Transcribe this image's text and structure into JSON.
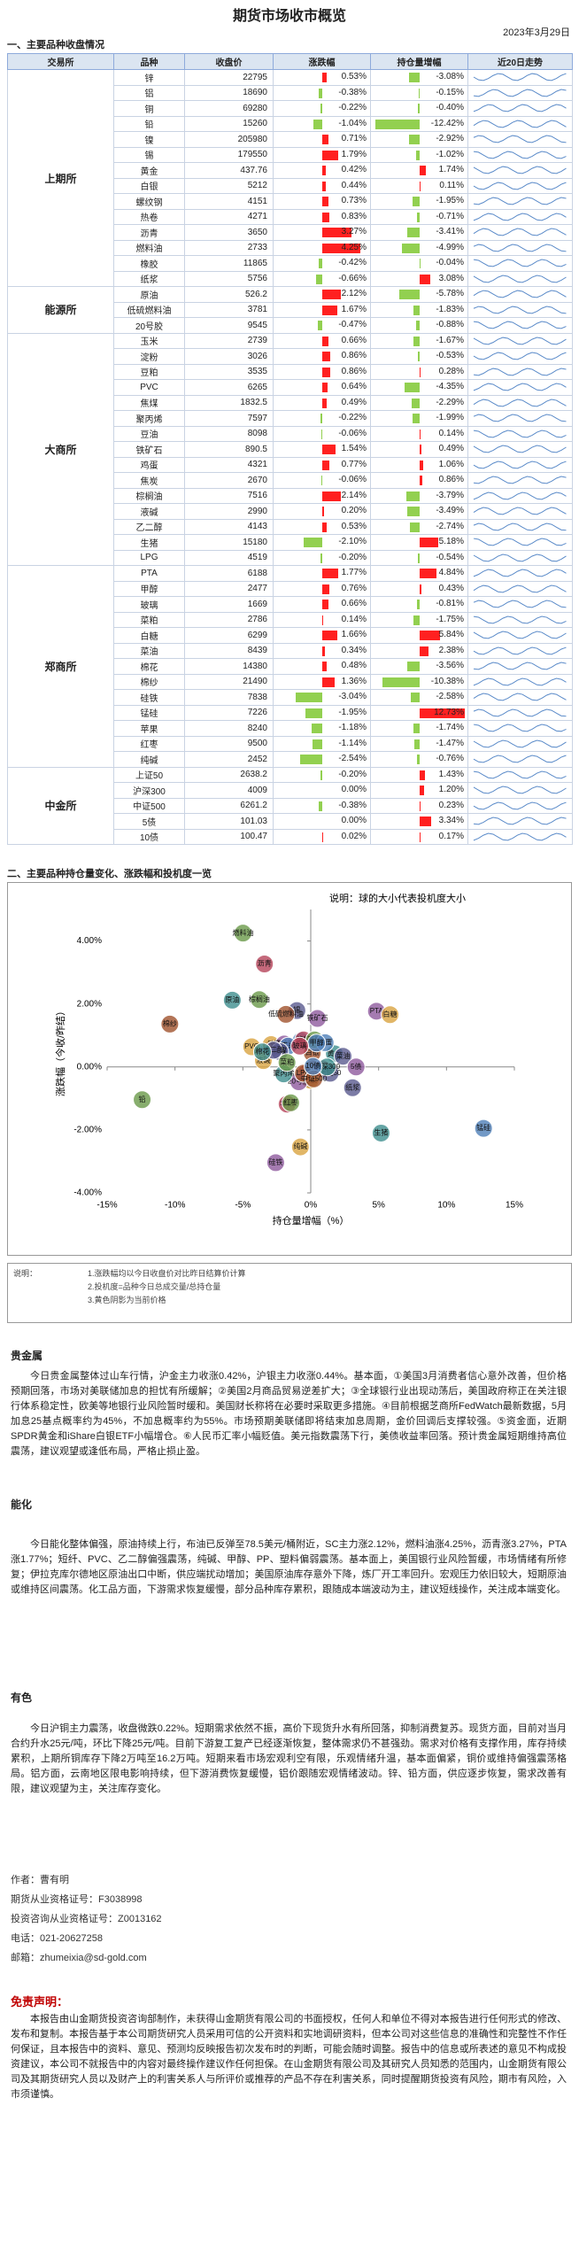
{
  "header": {
    "title": "期货市场收市概览",
    "date": "2023年3月29日"
  },
  "section1": "一、主要品种收盘情况",
  "table": {
    "columns": [
      "交易所",
      "品种",
      "收盘价",
      "涨跌幅",
      "持仓量增幅",
      "近20日走势"
    ],
    "groups": [
      {
        "exchange": "上期所",
        "rows": [
          {
            "variety": "锌",
            "close": 22795,
            "chg": 0.53,
            "chg_label": "0.53%",
            "oi": -3.08,
            "oi_label": "-3.08%"
          },
          {
            "variety": "铝",
            "close": 18690,
            "chg": -0.38,
            "chg_label": "-0.38%",
            "oi": -0.15,
            "oi_label": "-0.15%"
          },
          {
            "variety": "铜",
            "close": 69280,
            "chg": -0.22,
            "chg_label": "-0.22%",
            "oi": -0.4,
            "oi_label": "-0.40%"
          },
          {
            "variety": "铅",
            "close": 15260,
            "chg": -1.04,
            "chg_label": "-1.04%",
            "oi": -12.42,
            "oi_label": "-12.42%"
          },
          {
            "variety": "镍",
            "close": 205980,
            "chg": 0.71,
            "chg_label": "0.71%",
            "oi": -2.92,
            "oi_label": "-2.92%"
          },
          {
            "variety": "锡",
            "close": 179550,
            "chg": 1.79,
            "chg_label": "1.79%",
            "oi": -1.02,
            "oi_label": "-1.02%"
          },
          {
            "variety": "黄金",
            "close": 437.76,
            "chg": 0.42,
            "chg_label": "0.42%",
            "oi": 1.74,
            "oi_label": "1.74%"
          },
          {
            "variety": "白银",
            "close": 5212,
            "chg": 0.44,
            "chg_label": "0.44%",
            "oi": 0.11,
            "oi_label": "0.11%"
          },
          {
            "variety": "螺纹钢",
            "close": 4151,
            "chg": 0.73,
            "chg_label": "0.73%",
            "oi": -1.95,
            "oi_label": "-1.95%"
          },
          {
            "variety": "热卷",
            "close": 4271,
            "chg": 0.83,
            "chg_label": "0.83%",
            "oi": -0.71,
            "oi_label": "-0.71%"
          },
          {
            "variety": "沥青",
            "close": 3650,
            "chg": 3.27,
            "chg_label": "3.27%",
            "oi": -3.41,
            "oi_label": "-3.41%"
          },
          {
            "variety": "燃料油",
            "close": 2733,
            "chg": 4.25,
            "chg_label": "4.25%",
            "oi": -4.99,
            "oi_label": "-4.99%"
          },
          {
            "variety": "橡胶",
            "close": 11865,
            "chg": -0.42,
            "chg_label": "-0.42%",
            "oi": -0.04,
            "oi_label": "-0.04%"
          },
          {
            "variety": "纸浆",
            "close": 5756,
            "chg": -0.66,
            "chg_label": "-0.66%",
            "oi": 3.08,
            "oi_label": "3.08%"
          }
        ]
      },
      {
        "exchange": "能源所",
        "rows": [
          {
            "variety": "原油",
            "close": 526.2,
            "chg": 2.12,
            "chg_label": "2.12%",
            "oi": -5.78,
            "oi_label": "-5.78%"
          },
          {
            "variety": "低硫燃料油",
            "close": 3781,
            "chg": 1.67,
            "chg_label": "1.67%",
            "oi": -1.83,
            "oi_label": "-1.83%"
          },
          {
            "variety": "20号胶",
            "close": 9545,
            "chg": -0.47,
            "chg_label": "-0.47%",
            "oi": -0.88,
            "oi_label": "-0.88%"
          }
        ]
      },
      {
        "exchange": "大商所",
        "rows": [
          {
            "variety": "玉米",
            "close": 2739,
            "chg": 0.66,
            "chg_label": "0.66%",
            "oi": -1.67,
            "oi_label": "-1.67%"
          },
          {
            "variety": "淀粉",
            "close": 3026,
            "chg": 0.86,
            "chg_label": "0.86%",
            "oi": -0.53,
            "oi_label": "-0.53%"
          },
          {
            "variety": "豆粕",
            "close": 3535,
            "chg": 0.86,
            "chg_label": "0.86%",
            "oi": 0.28,
            "oi_label": "0.28%"
          },
          {
            "variety": "PVC",
            "close": 6265,
            "chg": 0.64,
            "chg_label": "0.64%",
            "oi": -4.35,
            "oi_label": "-4.35%"
          },
          {
            "variety": "焦煤",
            "close": 1832.5,
            "chg": 0.49,
            "chg_label": "0.49%",
            "oi": -2.29,
            "oi_label": "-2.29%"
          },
          {
            "variety": "聚丙烯",
            "close": 7597,
            "chg": -0.22,
            "chg_label": "-0.22%",
            "oi": -1.99,
            "oi_label": "-1.99%"
          },
          {
            "variety": "豆油",
            "close": 8098,
            "chg": -0.06,
            "chg_label": "-0.06%",
            "oi": 0.14,
            "oi_label": "0.14%"
          },
          {
            "variety": "铁矿石",
            "close": 890.5,
            "chg": 1.54,
            "chg_label": "1.54%",
            "oi": 0.49,
            "oi_label": "0.49%"
          },
          {
            "variety": "鸡蛋",
            "close": 4321,
            "chg": 0.77,
            "chg_label": "0.77%",
            "oi": 1.06,
            "oi_label": "1.06%"
          },
          {
            "variety": "焦炭",
            "close": 2670,
            "chg": -0.06,
            "chg_label": "-0.06%",
            "oi": 0.86,
            "oi_label": "0.86%"
          },
          {
            "variety": "棕榈油",
            "close": 7516,
            "chg": 2.14,
            "chg_label": "2.14%",
            "oi": -3.79,
            "oi_label": "-3.79%"
          },
          {
            "variety": "液碱",
            "close": 2990,
            "chg": 0.2,
            "chg_label": "0.20%",
            "oi": -3.49,
            "oi_label": "-3.49%"
          },
          {
            "variety": "乙二醇",
            "close": 4143,
            "chg": 0.53,
            "chg_label": "0.53%",
            "oi": -2.74,
            "oi_label": "-2.74%"
          },
          {
            "variety": "生猪",
            "close": 15180,
            "chg": -2.1,
            "chg_label": "-2.10%",
            "oi": 5.18,
            "oi_label": "5.18%"
          },
          {
            "variety": "LPG",
            "close": 4519,
            "chg": -0.2,
            "chg_label": "-0.20%",
            "oi": -0.54,
            "oi_label": "-0.54%"
          }
        ]
      },
      {
        "exchange": "郑商所",
        "rows": [
          {
            "variety": "PTA",
            "close": 6188,
            "chg": 1.77,
            "chg_label": "1.77%",
            "oi": 4.84,
            "oi_label": "4.84%"
          },
          {
            "variety": "甲醇",
            "close": 2477,
            "chg": 0.76,
            "chg_label": "0.76%",
            "oi": 0.43,
            "oi_label": "0.43%"
          },
          {
            "variety": "玻璃",
            "close": 1669,
            "chg": 0.66,
            "chg_label": "0.66%",
            "oi": -0.81,
            "oi_label": "-0.81%"
          },
          {
            "variety": "菜粕",
            "close": 2786,
            "chg": 0.14,
            "chg_label": "0.14%",
            "oi": -1.75,
            "oi_label": "-1.75%"
          },
          {
            "variety": "白糖",
            "close": 6299,
            "chg": 1.66,
            "chg_label": "1.66%",
            "oi": 5.84,
            "oi_label": "5.84%"
          },
          {
            "variety": "菜油",
            "close": 8439,
            "chg": 0.34,
            "chg_label": "0.34%",
            "oi": 2.38,
            "oi_label": "2.38%"
          },
          {
            "variety": "棉花",
            "close": 14380,
            "chg": 0.48,
            "chg_label": "0.48%",
            "oi": -3.56,
            "oi_label": "-3.56%"
          },
          {
            "variety": "棉纱",
            "close": 21490,
            "chg": 1.36,
            "chg_label": "1.36%",
            "oi": -10.38,
            "oi_label": "-10.38%"
          },
          {
            "variety": "硅铁",
            "close": 7838,
            "chg": -3.04,
            "chg_label": "-3.04%",
            "oi": -2.58,
            "oi_label": "-2.58%"
          },
          {
            "variety": "锰硅",
            "close": 7226,
            "chg": -1.95,
            "chg_label": "-1.95%",
            "oi": 12.73,
            "oi_label": "12.73%"
          },
          {
            "variety": "苹果",
            "close": 8240,
            "chg": -1.18,
            "chg_label": "-1.18%",
            "oi": -1.74,
            "oi_label": "-1.74%"
          },
          {
            "variety": "红枣",
            "close": 9500,
            "chg": -1.14,
            "chg_label": "-1.14%",
            "oi": -1.47,
            "oi_label": "-1.47%"
          },
          {
            "variety": "纯碱",
            "close": 2452,
            "chg": -2.54,
            "chg_label": "-2.54%",
            "oi": -0.76,
            "oi_label": "-0.76%"
          }
        ]
      },
      {
        "exchange": "中金所",
        "rows": [
          {
            "variety": "上证50",
            "close": 2638.2,
            "chg": -0.2,
            "chg_label": "-0.20%",
            "oi": 1.43,
            "oi_label": "1.43%"
          },
          {
            "variety": "沪深300",
            "close": 4009,
            "chg": 0,
            "chg_label": "0.00%",
            "oi": 1.2,
            "oi_label": "1.20%"
          },
          {
            "variety": "中证500",
            "close": 6261.2,
            "chg": -0.38,
            "chg_label": "-0.38%",
            "oi": 0.23,
            "oi_label": "0.23%"
          },
          {
            "variety": "5债",
            "close": 101.03,
            "chg": 0,
            "chg_label": "0.00%",
            "oi": 3.34,
            "oi_label": "3.34%"
          },
          {
            "variety": "10债",
            "close": 100.47,
            "chg": 0.02,
            "chg_label": "0.02%",
            "oi": 0.17,
            "oi_label": "0.17%"
          }
        ]
      }
    ]
  },
  "section2": "二、主要品种持仓量变化、涨跌幅和投机度一览",
  "chart_data": {
    "type": "bubble",
    "note": "说明：球的大小代表投机度大小",
    "x_label": "持仓量增幅（%）",
    "y_label": "涨跌幅（今收/昨结）",
    "xlim": [
      -15,
      15
    ],
    "xticks": [
      {
        "value": -15,
        "label": "-15%"
      },
      {
        "value": -10,
        "label": "-10%"
      },
      {
        "value": -5,
        "label": "-5%"
      },
      {
        "value": 0,
        "label": "0%"
      },
      {
        "value": 5,
        "label": "5%"
      },
      {
        "value": 10,
        "label": "10%"
      },
      {
        "value": 15,
        "label": "15%"
      }
    ],
    "ylim": [
      -4,
      5
    ],
    "yticks": [
      {
        "value": -4,
        "label": "-4.00%"
      },
      {
        "value": -2,
        "label": "-2.00%"
      },
      {
        "value": 0,
        "label": "0.00%"
      },
      {
        "value": 2,
        "label": "2.00%"
      },
      {
        "value": 4,
        "label": "4.00%"
      }
    ],
    "colors": [
      "#8e5a9e",
      "#4f7fb8",
      "#b5445a",
      "#6a9a4a",
      "#d9a441",
      "#5a5a8e",
      "#3e8e8e",
      "#a0522d"
    ]
  },
  "chart_notes": [
    "说明：",
    "1.涨跌幅均以今日收盘价对比昨日结算价计算",
    "2.投机度=品种今日总成交量/总持仓量",
    "3.黄色阴影为当前价格"
  ],
  "sections": [
    {
      "heading": "贵金属",
      "body": "今日贵金属整体过山车行情，沪金主力收涨0.42%，沪银主力收涨0.44%。基本面，①美国3月消费者信心意外改善，但价格预期回落，市场对美联储加息的担忧有所缓解；②美国2月商品贸易逆差扩大；③全球银行业出现动荡后，美国政府称正在关注银行体系稳定性，欧美等地银行业风险暂时缓和。美国财长称将在必要时采取更多措施。④目前根据芝商所FedWatch最新数据，5月加息25基点概率约为45%，不加息概率约为55%。市场预期美联储即将结束加息周期，金价回调后支撑较强。⑤资金面，近期SPDR黄金和iShare白银ETF小幅增仓。⑥人民币汇率小幅贬值。美元指数震荡下行，美债收益率回落。预计贵金属短期维持高位震荡，建议观望或逢低布局，严格止损止盈。"
    },
    {
      "heading": "能化",
      "body": "今日能化整体偏强，原油持续上行，布油已反弹至78.5美元/桶附近，SC主力涨2.12%，燃料油涨4.25%，沥青涨3.27%，PTA涨1.77%；短纤、PVC、乙二醇偏强震荡，纯碱、甲醇、PP、塑料偏弱震荡。基本面上，美国银行业风险暂缓，市场情绪有所修复；伊拉克库尔德地区原油出口中断，供应端扰动增加；美国原油库存意外下降，炼厂开工率回升。宏观压力依旧较大，短期原油或维持区间震荡。化工品方面，下游需求恢复缓慢，部分品种库存累积，跟随成本端波动为主，建议短线操作，关注成本端变化。"
    },
    {
      "heading": "有色",
      "body": "今日沪铜主力震荡，收盘微跌0.22%。短期需求依然不振，高价下现货升水有所回落，抑制消费复苏。现货方面，目前对当月合约升水25元/吨，环比下降25元/吨。目前下游复工复产已经逐渐恢复，整体需求仍不甚强劲。需求对价格有支撑作用，库存持续累积，上期所铜库存下降2万吨至16.2万吨。短期来看市场宏观利空有限，乐观情绪升温，基本面偏紧，铜价或维持偏强震荡格局。铝方面，云南地区限电影响持续，但下游消费恢复缓慢，铝价跟随宏观情绪波动。锌、铅方面，供应逐步恢复，需求改善有限，建议观望为主，关注库存变化。"
    }
  ],
  "contact": [
    "作者：曹有明",
    "期货从业资格证号：F3038998",
    "投资咨询从业资格证号：Z0013162",
    "电话：021-20627258",
    "邮箱：zhumeixia@sd-gold.com"
  ],
  "disclaimer": {
    "heading": "免责声明：",
    "body": "本报告由山金期货投资咨询部制作，未获得山金期货有限公司的书面授权，任何人和单位不得对本报告进行任何形式的修改、发布和复制。本报告基于本公司期货研究人员采用可信的公开资料和实地调研资料，但本公司对这些信息的准确性和完整性不作任何保证，且本报告中的资料、意见、预测均反映报告初次发布时的判断，可能会随时调整。报告中的信息或所表述的意见不构成投资建议，本公司不就报告中的内容对最终操作建议作任何担保。在山金期货有限公司及其研究人员知悉的范围内，山金期货有限公司及其期货研究人员以及财产上的利害关系人与所评价或推荐的产品不存在利害关系，同时提醒期货投资有风险，期市有风险，入市须谨慎。"
  }
}
